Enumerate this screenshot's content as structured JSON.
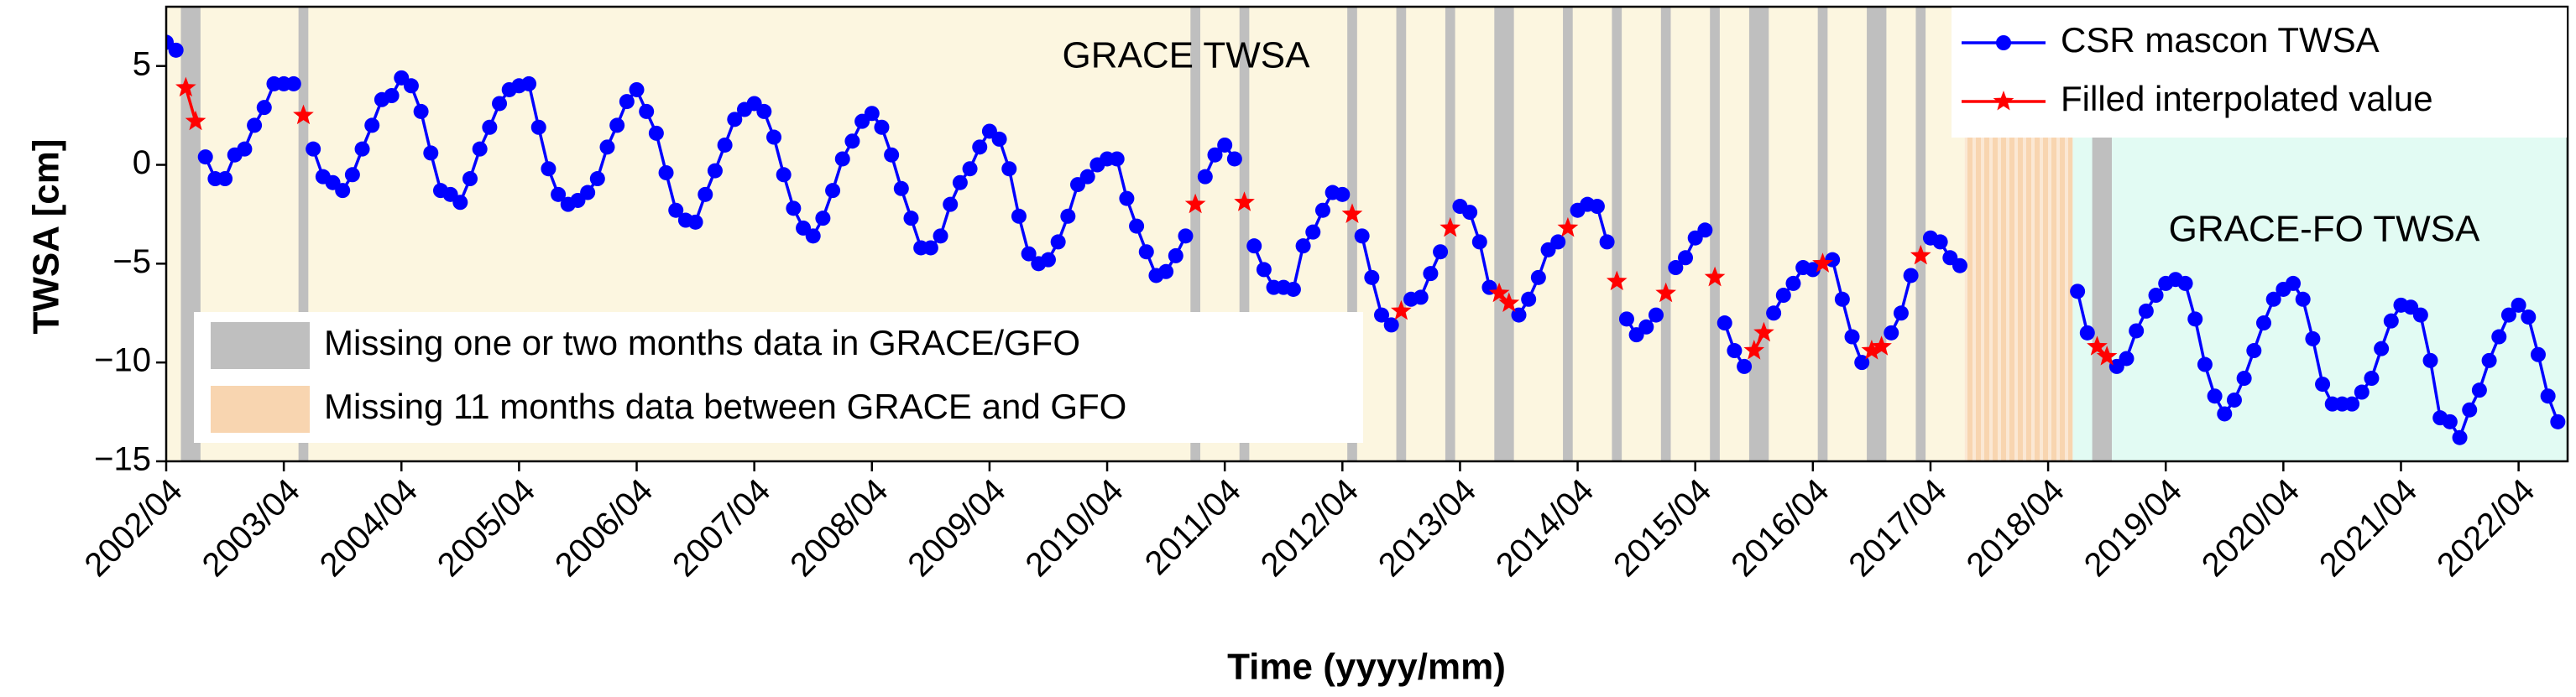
{
  "chart_data": {
    "type": "line",
    "x_label": "Time (yyyy/mm)",
    "y_label": "TWSA [cm]",
    "xlim": [
      "2002/04",
      "2022/09"
    ],
    "ylim": [
      -15,
      8
    ],
    "yticks": [
      {
        "value": -15,
        "label": "−15"
      },
      {
        "value": -10,
        "label": "−10"
      },
      {
        "value": -5,
        "label": "−5"
      },
      0,
      5
    ],
    "xticks": [
      "2002/04",
      "2003/04",
      "2004/04",
      "2005/04",
      "2006/04",
      "2007/04",
      "2008/04",
      "2009/04",
      "2010/04",
      "2011/04",
      "2012/04",
      "2013/04",
      "2014/04",
      "2015/04",
      "2016/04",
      "2017/04",
      "2018/04",
      "2019/04",
      "2020/04",
      "2021/04",
      "2022/04"
    ],
    "legend": "upper right",
    "periods": [
      {
        "label": "GRACE TWSA",
        "start": "2002/04",
        "end": "2017/07",
        "color": "#fcf6e0"
      },
      {
        "label": "GRACE-FO TWSA",
        "start": "2018/07",
        "end": "2022/09",
        "color": "#e2fbf3"
      }
    ],
    "missing_short": {
      "label": "Missing one or two months data in GRACE/GFO",
      "color": "#bfbfbf",
      "spans": [
        [
          "2002/06",
          "2002/07"
        ],
        [
          "2003/06",
          "2003/06"
        ],
        [
          "2011/01",
          "2011/01"
        ],
        [
          "2011/06",
          "2011/06"
        ],
        [
          "2012/05",
          "2012/05"
        ],
        [
          "2012/10",
          "2012/10"
        ],
        [
          "2013/03",
          "2013/03"
        ],
        [
          "2013/08",
          "2013/09"
        ],
        [
          "2014/03",
          "2014/03"
        ],
        [
          "2014/08",
          "2014/08"
        ],
        [
          "2015/01",
          "2015/01"
        ],
        [
          "2015/06",
          "2015/06"
        ],
        [
          "2015/10",
          "2015/11"
        ],
        [
          "2016/05",
          "2016/05"
        ],
        [
          "2016/10",
          "2016/11"
        ],
        [
          "2017/03",
          "2017/03"
        ],
        [
          "2018/09",
          "2018/10"
        ]
      ]
    },
    "missing_long": {
      "label": "Missing 11 months data between GRACE and GFO",
      "color": "#f8d5b0",
      "spans": [
        [
          "2017/08",
          "2018/06"
        ]
      ]
    },
    "x": [
      "2002/04",
      "2002/05",
      "2002/06",
      "2002/07",
      "2002/08",
      "2002/09",
      "2002/10",
      "2002/11",
      "2002/12",
      "2003/01",
      "2003/02",
      "2003/03",
      "2003/04",
      "2003/05",
      "2003/06",
      "2003/07",
      "2003/08",
      "2003/09",
      "2003/10",
      "2003/11",
      "2003/12",
      "2004/01",
      "2004/02",
      "2004/03",
      "2004/04",
      "2004/05",
      "2004/06",
      "2004/07",
      "2004/08",
      "2004/09",
      "2004/10",
      "2004/11",
      "2004/12",
      "2005/01",
      "2005/02",
      "2005/03",
      "2005/04",
      "2005/05",
      "2005/06",
      "2005/07",
      "2005/08",
      "2005/09",
      "2005/10",
      "2005/11",
      "2005/12",
      "2006/01",
      "2006/02",
      "2006/03",
      "2006/04",
      "2006/05",
      "2006/06",
      "2006/07",
      "2006/08",
      "2006/09",
      "2006/10",
      "2006/11",
      "2006/12",
      "2007/01",
      "2007/02",
      "2007/03",
      "2007/04",
      "2007/05",
      "2007/06",
      "2007/07",
      "2007/08",
      "2007/09",
      "2007/10",
      "2007/11",
      "2007/12",
      "2008/01",
      "2008/02",
      "2008/03",
      "2008/04",
      "2008/05",
      "2008/06",
      "2008/07",
      "2008/08",
      "2008/09",
      "2008/10",
      "2008/11",
      "2008/12",
      "2009/01",
      "2009/02",
      "2009/03",
      "2009/04",
      "2009/05",
      "2009/06",
      "2009/07",
      "2009/08",
      "2009/09",
      "2009/10",
      "2009/11",
      "2009/12",
      "2010/01",
      "2010/02",
      "2010/03",
      "2010/04",
      "2010/05",
      "2010/06",
      "2010/07",
      "2010/08",
      "2010/09",
      "2010/10",
      "2010/11",
      "2010/12",
      "2011/01",
      "2011/02",
      "2011/03",
      "2011/04",
      "2011/05",
      "2011/06",
      "2011/07",
      "2011/08",
      "2011/09",
      "2011/10",
      "2011/11",
      "2011/12",
      "2012/01",
      "2012/02",
      "2012/03",
      "2012/04",
      "2012/05",
      "2012/06",
      "2012/07",
      "2012/08",
      "2012/09",
      "2012/10",
      "2012/11",
      "2012/12",
      "2013/01",
      "2013/02",
      "2013/03",
      "2013/04",
      "2013/05",
      "2013/06",
      "2013/07",
      "2013/08",
      "2013/09",
      "2013/10",
      "2013/11",
      "2013/12",
      "2014/01",
      "2014/02",
      "2014/03",
      "2014/04",
      "2014/05",
      "2014/06",
      "2014/07",
      "2014/08",
      "2014/09",
      "2014/10",
      "2014/11",
      "2014/12",
      "2015/01",
      "2015/02",
      "2015/03",
      "2015/04",
      "2015/05",
      "2015/06",
      "2015/07",
      "2015/08",
      "2015/09",
      "2015/10",
      "2015/11",
      "2015/12",
      "2016/01",
      "2016/02",
      "2016/03",
      "2016/04",
      "2016/05",
      "2016/06",
      "2016/07",
      "2016/08",
      "2016/09",
      "2016/10",
      "2016/11",
      "2016/12",
      "2017/01",
      "2017/02",
      "2017/03",
      "2017/04",
      "2017/05",
      "2017/06",
      "2017/07",
      "2017/08",
      "2017/09",
      "2017/10",
      "2017/11",
      "2017/12",
      "2018/01",
      "2018/02",
      "2018/03",
      "2018/04",
      "2018/05",
      "2018/06",
      "2018/07",
      "2018/08",
      "2018/09",
      "2018/10",
      "2018/11",
      "2018/12",
      "2019/01",
      "2019/02",
      "2019/03",
      "2019/04",
      "2019/05",
      "2019/06",
      "2019/07",
      "2019/08",
      "2019/09",
      "2019/10",
      "2019/11",
      "2019/12",
      "2020/01",
      "2020/02",
      "2020/03",
      "2020/04",
      "2020/05",
      "2020/06",
      "2020/07",
      "2020/08",
      "2020/09",
      "2020/10",
      "2020/11",
      "2020/12",
      "2021/01",
      "2021/02",
      "2021/03",
      "2021/04",
      "2021/05",
      "2021/06",
      "2021/07",
      "2021/08",
      "2021/09",
      "2021/10",
      "2021/11",
      "2021/12",
      "2022/01",
      "2022/02",
      "2022/03",
      "2022/04",
      "2022/05",
      "2022/06",
      "2022/07",
      "2022/08"
    ],
    "series": [
      {
        "name": "CSR mascon TWSA",
        "color": "#0000ff",
        "marker": "circle",
        "values": [
          6.2,
          5.8,
          null,
          null,
          0.4,
          -0.7,
          -0.7,
          0.5,
          0.8,
          2.0,
          2.9,
          4.1,
          4.1,
          4.1,
          null,
          0.8,
          -0.6,
          -0.9,
          -1.3,
          -0.5,
          0.8,
          2.0,
          3.3,
          3.5,
          4.4,
          4.0,
          2.7,
          0.6,
          -1.3,
          -1.5,
          -1.9,
          -0.7,
          0.8,
          1.9,
          3.1,
          3.8,
          4.0,
          4.1,
          1.9,
          -0.2,
          -1.5,
          -2.0,
          -1.8,
          -1.4,
          -0.7,
          0.9,
          2.0,
          3.2,
          3.8,
          2.7,
          1.6,
          -0.4,
          -2.3,
          -2.8,
          -2.9,
          -1.5,
          -0.3,
          1.0,
          2.3,
          2.8,
          3.1,
          2.7,
          1.4,
          -0.5,
          -2.2,
          -3.2,
          -3.6,
          -2.7,
          -1.3,
          0.3,
          1.2,
          2.2,
          2.6,
          1.9,
          0.5,
          -1.2,
          -2.7,
          -4.2,
          -4.2,
          -3.6,
          -2.0,
          -0.9,
          -0.2,
          0.9,
          1.7,
          1.3,
          -0.2,
          -2.6,
          -4.5,
          -5.0,
          -4.8,
          -3.9,
          -2.6,
          -1.0,
          -0.6,
          0.0,
          0.3,
          0.3,
          -1.7,
          -3.1,
          -4.4,
          -5.6,
          -5.4,
          -4.6,
          -3.6,
          null,
          -0.6,
          0.5,
          1.0,
          0.3,
          null,
          -4.1,
          -5.3,
          -6.2,
          -6.2,
          -6.3,
          -4.1,
          -3.4,
          -2.3,
          -1.4,
          -1.5,
          null,
          -3.6,
          -5.7,
          -7.6,
          -8.1,
          null,
          -6.8,
          -6.7,
          -5.5,
          -4.4,
          null,
          -2.1,
          -2.4,
          -3.9,
          -6.2,
          null,
          null,
          -7.6,
          -6.8,
          -5.7,
          -4.3,
          -3.9,
          null,
          -2.3,
          -2.0,
          -2.1,
          -3.9,
          null,
          -7.8,
          -8.6,
          -8.2,
          -7.6,
          null,
          -5.2,
          -4.7,
          -3.7,
          -3.3,
          null,
          -8.0,
          -9.4,
          -10.2,
          null,
          null,
          -7.5,
          -6.6,
          -6.0,
          -5.2,
          -5.3,
          null,
          -4.8,
          -6.8,
          -8.7,
          -10.0,
          null,
          null,
          -8.5,
          -7.5,
          -5.6,
          null,
          -3.7,
          -3.9,
          -4.7,
          -5.1,
          null,
          null,
          null,
          null,
          null,
          null,
          null,
          null,
          null,
          null,
          null,
          -6.4,
          -8.5,
          null,
          null,
          -10.2,
          -9.8,
          -8.4,
          -7.4,
          -6.6,
          -6.0,
          -5.8,
          -6.0,
          -7.8,
          -10.1,
          -11.7,
          -12.6,
          -11.9,
          -10.8,
          -9.4,
          -8.0,
          -6.8,
          -6.3,
          -6.0,
          -6.8,
          -8.8,
          -11.1,
          -12.1,
          -12.1,
          -12.1,
          -11.5,
          -10.8,
          -9.3,
          -7.9,
          -7.1,
          -7.2,
          -7.6,
          -9.9,
          -12.8,
          -13.0,
          -13.8,
          -12.4,
          -11.4,
          -9.9,
          -8.7,
          -7.6,
          -7.1,
          -7.7,
          -9.6,
          -11.7,
          -13.0
        ]
      },
      {
        "name": "Filled interpolated value",
        "color": "#ff0000",
        "marker": "star",
        "values": [
          null,
          null,
          3.9,
          2.2,
          null,
          null,
          null,
          null,
          null,
          null,
          null,
          null,
          null,
          null,
          2.5,
          null,
          null,
          null,
          null,
          null,
          null,
          null,
          null,
          null,
          null,
          null,
          null,
          null,
          null,
          null,
          null,
          null,
          null,
          null,
          null,
          null,
          null,
          null,
          null,
          null,
          null,
          null,
          null,
          null,
          null,
          null,
          null,
          null,
          null,
          null,
          null,
          null,
          null,
          null,
          null,
          null,
          null,
          null,
          null,
          null,
          null,
          null,
          null,
          null,
          null,
          null,
          null,
          null,
          null,
          null,
          null,
          null,
          null,
          null,
          null,
          null,
          null,
          null,
          null,
          null,
          null,
          null,
          null,
          null,
          null,
          null,
          null,
          null,
          null,
          null,
          null,
          null,
          null,
          null,
          null,
          null,
          null,
          null,
          null,
          null,
          null,
          null,
          null,
          null,
          null,
          -2.0,
          null,
          null,
          null,
          null,
          -1.9,
          null,
          null,
          null,
          null,
          null,
          null,
          null,
          null,
          null,
          null,
          -2.5,
          null,
          null,
          null,
          null,
          -7.4,
          null,
          null,
          null,
          null,
          -3.2,
          null,
          null,
          null,
          null,
          -6.5,
          -7.0,
          null,
          null,
          null,
          null,
          null,
          -3.2,
          null,
          null,
          null,
          null,
          -5.9,
          null,
          null,
          null,
          null,
          -6.5,
          null,
          null,
          null,
          null,
          -5.7,
          null,
          null,
          null,
          -9.4,
          -8.5,
          null,
          null,
          null,
          null,
          null,
          -5.0,
          null,
          null,
          null,
          null,
          -9.4,
          -9.2,
          null,
          null,
          null,
          -4.6,
          null,
          null,
          null,
          null,
          null,
          null,
          null,
          null,
          null,
          null,
          null,
          null,
          null,
          null,
          null,
          null,
          null,
          -9.2,
          -9.7,
          null,
          null,
          null,
          null,
          null,
          null,
          null,
          null,
          null,
          null,
          null,
          null,
          null,
          null,
          null,
          null,
          null,
          null,
          null,
          null,
          null,
          null,
          null,
          null,
          null,
          null,
          null,
          null,
          null,
          null,
          null,
          null,
          null,
          null,
          null,
          null,
          null,
          null,
          null,
          null,
          null,
          null,
          null,
          null,
          null,
          null
        ]
      }
    ]
  }
}
